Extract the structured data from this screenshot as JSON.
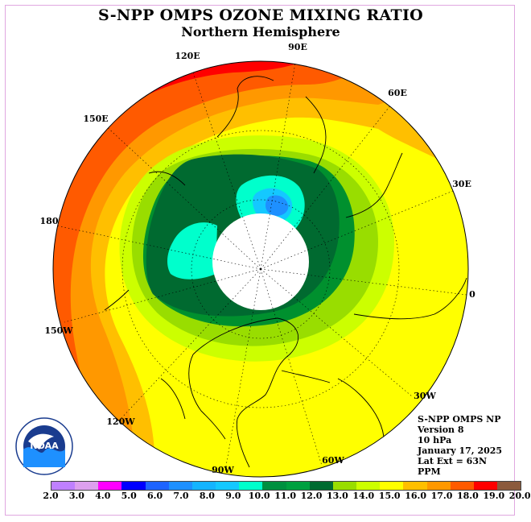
{
  "header": {
    "title": "S-NPP OMPS OZONE MIXING RATIO",
    "subtitle": "Northern Hemisphere"
  },
  "map": {
    "longitude_labels": [
      "90E",
      "60E",
      "30E",
      "0",
      "30W",
      "60W",
      "90W",
      "120W",
      "150W",
      "180",
      "150E",
      "120E"
    ],
    "colors": {
      "band_18_19": "#ff0000",
      "band_17_18": "#ff5a00",
      "band_16_17": "#ff9800",
      "band_15_16": "#ffbf00",
      "band_14_15": "#ffff00",
      "band_13_14": "#ccff00",
      "band_12_13": "#99dd00",
      "band_11_12": "#00902e",
      "band_10_11": "#006a30",
      "band_9_10": "#00ffcc",
      "band_8_9": "#14c8ff",
      "band_7_8": "#1e90ff",
      "polar_night": "#ffffff"
    }
  },
  "info": {
    "instrument": "S-NPP OMPS NP",
    "version": "Version 8",
    "level": "10 hPa",
    "date": "January 17, 2025",
    "lat_ext": "Lat Ext = 63N",
    "units": "PPM"
  },
  "legend": {
    "ticks": [
      "2.0",
      "3.0",
      "4.0",
      "5.0",
      "6.0",
      "7.0",
      "8.0",
      "9.0",
      "10.0",
      "11.0",
      "12.0",
      "13.0",
      "14.0",
      "15.0",
      "16.0",
      "17.0",
      "18.0",
      "19.0",
      "20.0"
    ],
    "colors": [
      "#bf80ff",
      "#dda0ee",
      "#ff00ff",
      "#0000ff",
      "#1e64ff",
      "#1e90ff",
      "#14b4ff",
      "#14c8ff",
      "#00ffcc",
      "#009040",
      "#00a040",
      "#006a30",
      "#99dd00",
      "#ccff00",
      "#ffff00",
      "#ffbf00",
      "#ff9800",
      "#ff5a00",
      "#ff0000",
      "#8b5a3c"
    ]
  },
  "logo": {
    "name": "NOAA"
  }
}
